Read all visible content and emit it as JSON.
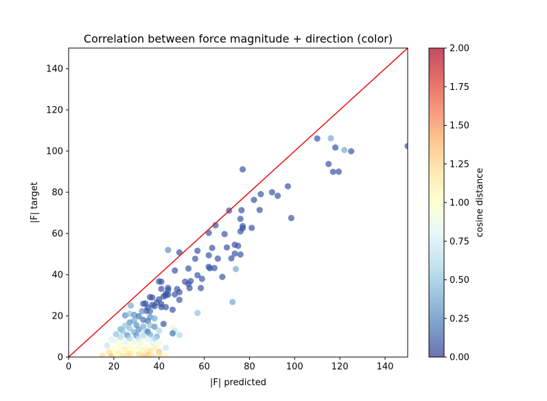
{
  "chart_data": {
    "type": "scatter",
    "title": "Correlation between force magnitude + direction (color)",
    "xlabel": "|F| predicted",
    "ylabel": "|F| target",
    "xlim": [
      0,
      150
    ],
    "ylim": [
      0,
      150
    ],
    "x_ticks": [
      "0",
      "20",
      "40",
      "60",
      "80",
      "100",
      "120",
      "140"
    ],
    "y_ticks": [
      "0",
      "20",
      "40",
      "60",
      "80",
      "100",
      "120",
      "140"
    ],
    "grid": false,
    "reference_line": {
      "x": [
        0,
        150
      ],
      "y": [
        0,
        150
      ],
      "color": "#e41a1c"
    },
    "colorbar": {
      "label": "cosine distance",
      "range": [
        0,
        2
      ],
      "ticks": [
        "0.00",
        "0.25",
        "0.50",
        "0.75",
        "1.00",
        "1.25",
        "1.50",
        "1.75",
        "2.00"
      ],
      "colormap": "RdYlBu_r"
    },
    "points": [
      [
        150,
        102.4,
        0.1
      ],
      [
        125,
        99.9,
        0.1
      ],
      [
        122,
        100.5,
        0.4
      ],
      [
        118,
        101.7,
        0.1
      ],
      [
        116,
        106.2,
        0.4
      ],
      [
        110,
        106.1,
        0.1
      ],
      [
        115,
        93.7,
        0.1
      ],
      [
        117,
        89.9,
        0.1
      ],
      [
        119.5,
        90,
        0.1
      ],
      [
        97,
        82.9,
        0.1
      ],
      [
        98.5,
        67.5,
        0.1
      ],
      [
        90,
        80,
        0.1
      ],
      [
        92.5,
        78.3,
        0.1
      ],
      [
        85,
        79.1,
        0.1
      ],
      [
        82,
        76.3,
        0.1
      ],
      [
        84.5,
        71.4,
        0.1
      ],
      [
        77,
        91.1,
        0.1
      ],
      [
        71,
        71.1,
        0.1
      ],
      [
        76.5,
        71.3,
        0.1
      ],
      [
        76,
        67.1,
        0.1
      ],
      [
        77,
        63.6,
        0.1
      ],
      [
        77,
        62.5,
        0.1
      ],
      [
        81,
        62.7,
        0.1
      ],
      [
        76,
        61,
        0.1
      ],
      [
        65,
        64,
        0.1
      ],
      [
        62,
        60.3,
        0.1
      ],
      [
        69,
        59.7,
        0.1
      ],
      [
        73.5,
        54.5,
        0.1
      ],
      [
        75,
        54,
        0.1
      ],
      [
        70,
        53.2,
        0.1
      ],
      [
        63.5,
        53,
        0.1
      ],
      [
        57,
        51.6,
        0.1
      ],
      [
        49,
        50.8,
        0.1
      ],
      [
        44,
        52,
        0.3
      ],
      [
        73.5,
        50.2,
        0.1
      ],
      [
        76,
        49.8,
        0.1
      ],
      [
        72,
        47.9,
        0.1
      ],
      [
        62,
        49.4,
        0.1
      ],
      [
        66,
        47.8,
        0.1
      ],
      [
        56,
        47.7,
        0.1
      ],
      [
        62,
        43.8,
        0.1
      ],
      [
        62.5,
        43.1,
        0.1
      ],
      [
        64.5,
        43.2,
        0.1
      ],
      [
        53,
        43,
        0.1
      ],
      [
        47,
        42,
        0.1
      ],
      [
        74,
        42.7,
        0.4
      ],
      [
        57,
        39.7,
        0.1
      ],
      [
        59,
        38,
        0.1
      ],
      [
        68,
        38.9,
        0.1
      ],
      [
        51.5,
        36.6,
        0.1
      ],
      [
        54,
        36.9,
        0.1
      ],
      [
        53,
        35.5,
        0.1
      ],
      [
        40,
        36.7,
        0.1
      ],
      [
        41,
        36.6,
        0.1
      ],
      [
        53.5,
        33.5,
        0.1
      ],
      [
        58.5,
        33.5,
        0.1
      ],
      [
        44,
        33.6,
        0.1
      ],
      [
        44,
        32.5,
        0.1
      ],
      [
        48,
        33,
        0.1
      ],
      [
        41,
        33.1,
        0.1
      ],
      [
        49,
        31.5,
        0.1
      ],
      [
        43,
        30.7,
        0.1
      ],
      [
        44,
        30.3,
        0.1
      ],
      [
        47,
        30.4,
        0.1
      ],
      [
        42,
        29.4,
        0.1
      ],
      [
        36,
        29.1,
        0.1
      ],
      [
        37,
        28.9,
        0.1
      ],
      [
        49,
        27.8,
        0.1
      ],
      [
        72.5,
        26.7,
        0.4
      ],
      [
        43,
        29.9,
        0.1
      ],
      [
        40,
        28,
        0.1
      ],
      [
        37,
        25.3,
        0.1
      ],
      [
        39,
        26.5,
        0.1
      ],
      [
        41,
        25.7,
        0.1
      ],
      [
        34,
        26,
        0.1
      ],
      [
        33,
        25.9,
        0.1
      ],
      [
        27.5,
        25,
        0.4
      ],
      [
        35,
        24,
        0.1
      ],
      [
        38,
        24.7,
        0.1
      ],
      [
        41,
        24.3,
        0.1
      ],
      [
        43,
        24.2,
        0.1
      ],
      [
        46,
        23,
        0.1
      ],
      [
        34.5,
        22.4,
        0.1
      ],
      [
        32.5,
        22.3,
        0.3
      ],
      [
        36,
        22.3,
        0.2
      ],
      [
        57,
        21.4,
        0.5
      ],
      [
        25,
        20.2,
        0.3
      ],
      [
        27,
        21,
        0.5
      ],
      [
        29,
        20.5,
        0.3
      ],
      [
        31,
        19.8,
        0.2
      ],
      [
        36,
        19.5,
        0.3
      ],
      [
        38,
        18.7,
        0.4
      ],
      [
        33,
        18.1,
        0.2
      ],
      [
        29,
        17.8,
        0.4
      ],
      [
        27,
        16.8,
        0.3
      ],
      [
        35,
        17.5,
        0.2
      ],
      [
        42,
        16.1,
        0.1
      ],
      [
        30,
        15.5,
        0.3
      ],
      [
        25,
        15.2,
        0.5
      ],
      [
        33,
        14.8,
        0.4
      ],
      [
        36,
        15.4,
        0.5
      ],
      [
        38,
        14.7,
        0.3
      ],
      [
        23,
        13.5,
        0.4
      ],
      [
        27,
        13.9,
        0.5
      ],
      [
        31,
        13.3,
        0.3
      ],
      [
        34,
        12.8,
        0.6
      ],
      [
        24,
        12.5,
        0.5
      ],
      [
        29,
        12.1,
        0.4
      ],
      [
        35,
        12.3,
        0.2
      ],
      [
        40,
        12.8,
        0.6
      ],
      [
        46,
        14.4,
        0.9
      ],
      [
        47,
        12.8,
        0.7
      ],
      [
        46,
        11.5,
        0.2
      ],
      [
        49,
        10.7,
        0.6
      ],
      [
        21,
        11.1,
        0.5
      ],
      [
        26,
        10.6,
        0.3
      ],
      [
        30,
        10.5,
        0.3
      ],
      [
        33,
        10.6,
        0.6
      ],
      [
        36,
        10.9,
        0.4
      ],
      [
        39,
        9.9,
        0.4
      ],
      [
        23,
        9.7,
        0.6
      ],
      [
        27,
        9.1,
        0.6
      ],
      [
        31,
        8.9,
        0.7
      ],
      [
        35,
        8.8,
        0.8
      ],
      [
        38,
        8.9,
        0.6
      ],
      [
        19,
        8.4,
        0.8
      ],
      [
        21,
        7.8,
        0.9
      ],
      [
        25,
        7.3,
        0.8
      ],
      [
        29,
        7.5,
        0.9
      ],
      [
        32,
        7.2,
        0.9
      ],
      [
        37,
        6.8,
        0.8
      ],
      [
        40,
        6.4,
        0.9
      ],
      [
        17,
        5.6,
        0.7
      ],
      [
        23,
        5.5,
        1.0
      ],
      [
        27,
        5.3,
        1.0
      ],
      [
        31,
        5.1,
        0.9
      ],
      [
        34,
        4.9,
        1.0
      ],
      [
        38,
        4.7,
        1.1
      ],
      [
        43,
        4.5,
        0.7
      ],
      [
        20,
        4.0,
        1.0
      ],
      [
        25,
        3.8,
        1.1
      ],
      [
        29,
        3.4,
        1.0
      ],
      [
        33,
        3.2,
        1.1
      ],
      [
        36,
        3.1,
        1.2
      ],
      [
        40,
        2.6,
        1.3
      ],
      [
        18,
        2.3,
        1.2
      ],
      [
        22,
        2.1,
        1.1
      ],
      [
        27,
        1.8,
        1.2
      ],
      [
        31,
        1.4,
        1.2
      ],
      [
        35,
        1.2,
        1.3
      ],
      [
        40,
        1.0,
        1.2
      ],
      [
        15,
        0.6,
        1.2
      ],
      [
        19,
        0.4,
        1.3
      ],
      [
        24,
        0.5,
        1.2
      ],
      [
        28,
        0.3,
        1.1
      ],
      [
        33,
        0.2,
        1.3
      ],
      [
        37,
        0.4,
        1.2
      ],
      [
        43,
        0.3,
        1.1
      ],
      [
        21,
        0.9,
        1.0
      ],
      [
        26,
        0.7,
        1.2
      ]
    ]
  }
}
